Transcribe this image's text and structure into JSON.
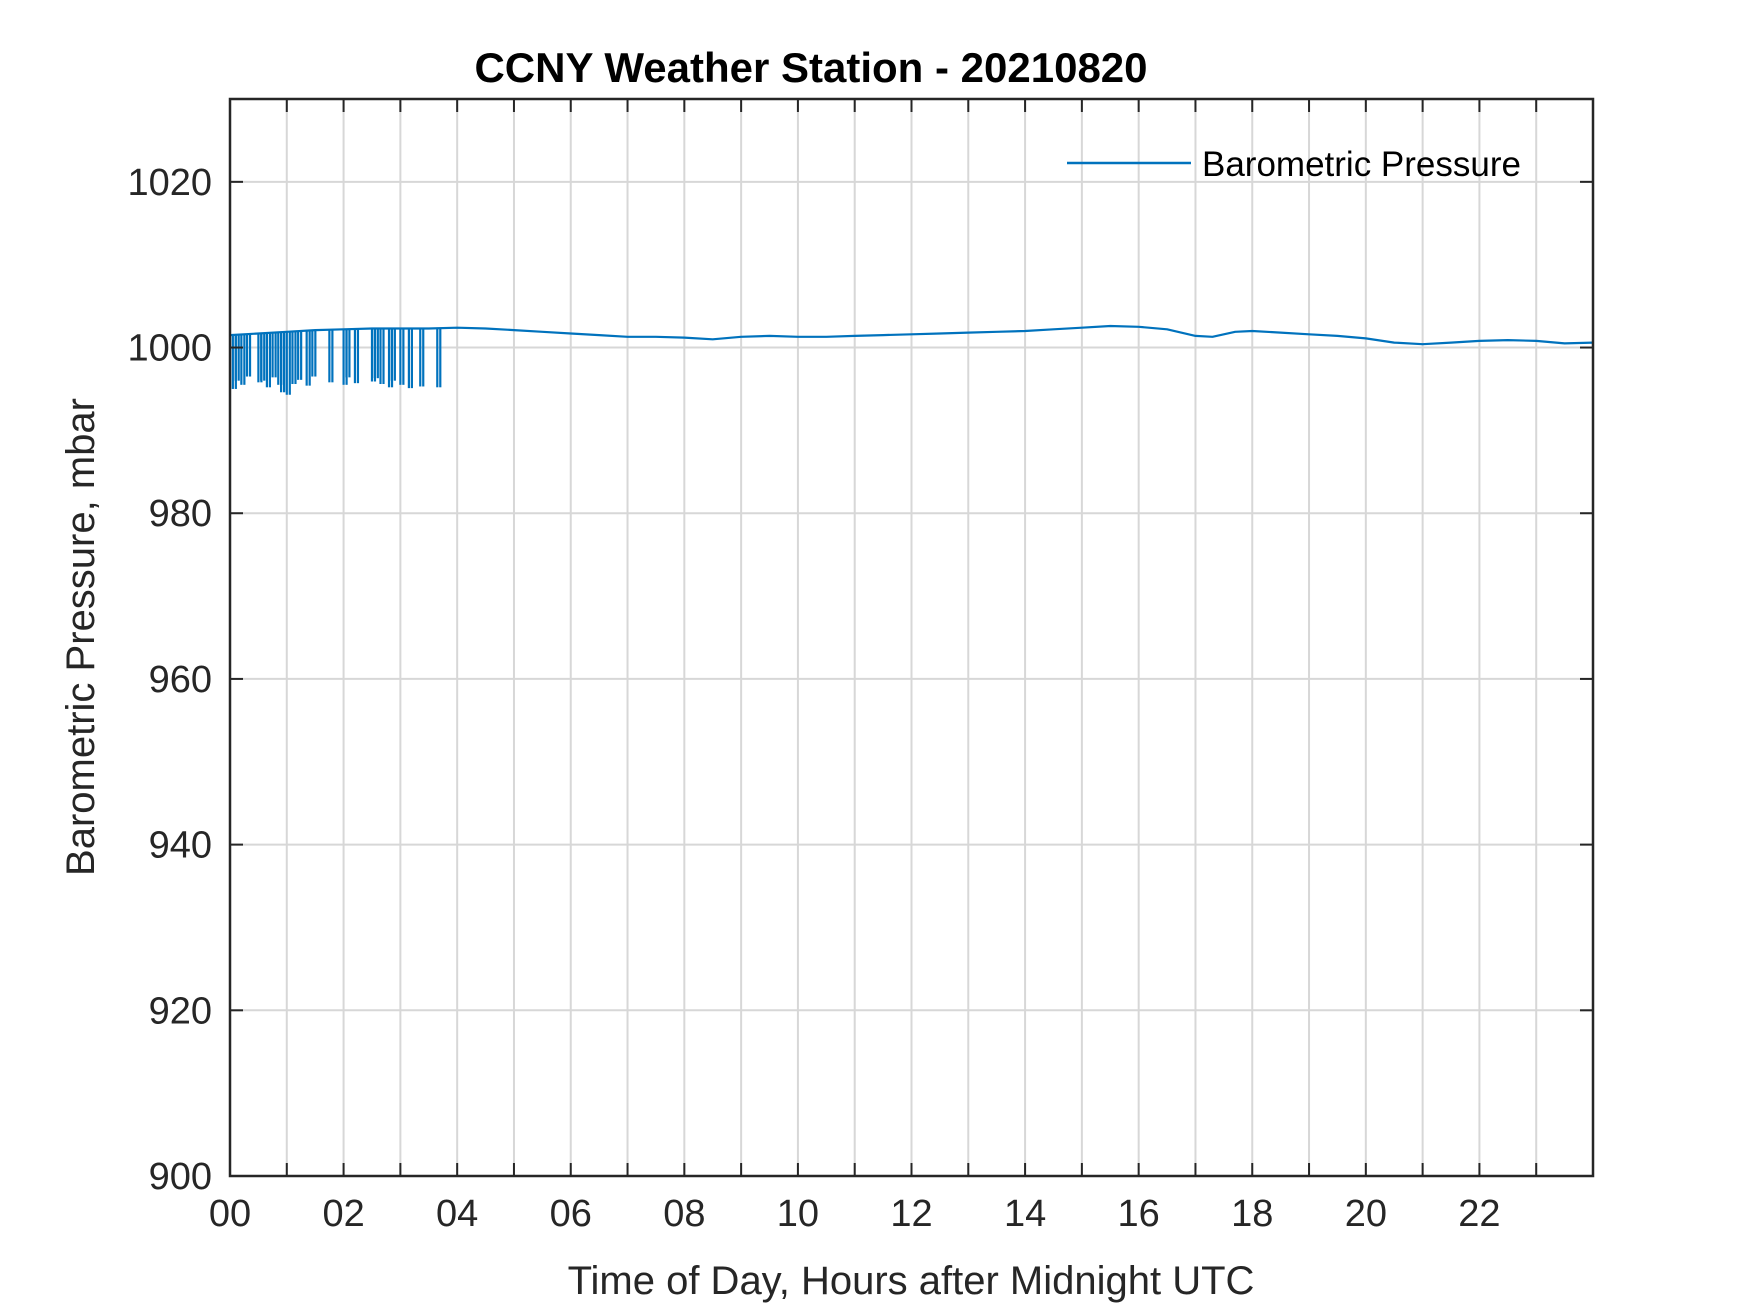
{
  "chart_data": {
    "type": "line",
    "title": "CCNY Weather Station - 20210820",
    "xlabel": "Time of Day, Hours after Midnight UTC",
    "ylabel": "Barometric Pressure, mbar",
    "xlim": [
      0,
      24
    ],
    "ylim": [
      900,
      1030
    ],
    "x_ticks": [
      0,
      2,
      4,
      6,
      8,
      10,
      12,
      14,
      16,
      18,
      20,
      22
    ],
    "x_tick_labels": [
      "00",
      "02",
      "04",
      "06",
      "08",
      "10",
      "12",
      "14",
      "16",
      "18",
      "20",
      "22"
    ],
    "x_minor_grid": [
      1,
      3,
      5,
      7,
      9,
      11,
      13,
      15,
      17,
      19,
      21,
      23
    ],
    "y_ticks": [
      900,
      920,
      940,
      960,
      980,
      1000,
      1020
    ],
    "y_tick_labels": [
      "900",
      "920",
      "940",
      "960",
      "980",
      "1000",
      "1020"
    ],
    "grid": true,
    "legend": {
      "position": "top-right",
      "entries": [
        "Barometric Pressure"
      ]
    },
    "series": [
      {
        "name": "Barometric Pressure",
        "color": "#0072BD",
        "x": [
          0.0,
          0.5,
          1.0,
          1.5,
          2.0,
          2.5,
          3.0,
          3.5,
          4.0,
          4.5,
          5.0,
          5.5,
          6.0,
          6.5,
          7.0,
          7.5,
          8.0,
          8.5,
          9.0,
          9.5,
          10.0,
          10.5,
          11.0,
          11.5,
          12.0,
          12.5,
          13.0,
          13.5,
          14.0,
          14.5,
          15.0,
          15.5,
          16.0,
          16.5,
          17.0,
          17.3,
          17.7,
          18.0,
          18.5,
          19.0,
          19.5,
          20.0,
          20.5,
          21.0,
          21.5,
          22.0,
          22.5,
          23.0,
          23.5,
          24.0
        ],
        "values": [
          1001.5,
          1001.7,
          1001.9,
          1002.1,
          1002.2,
          1002.3,
          1002.3,
          1002.3,
          1002.4,
          1002.3,
          1002.1,
          1001.9,
          1001.7,
          1001.5,
          1001.3,
          1001.3,
          1001.2,
          1001.0,
          1001.3,
          1001.4,
          1001.3,
          1001.3,
          1001.4,
          1001.5,
          1001.6,
          1001.7,
          1001.8,
          1001.9,
          1002.0,
          1002.2,
          1002.4,
          1002.6,
          1002.5,
          1002.2,
          1001.4,
          1001.3,
          1001.9,
          1002.0,
          1001.8,
          1001.6,
          1001.4,
          1001.1,
          1000.6,
          1000.4,
          1000.6,
          1000.8,
          1000.9,
          1000.8,
          1000.5,
          1000.6
        ]
      }
    ],
    "dropouts": {
      "x": [
        0.05,
        0.1,
        0.2,
        0.3,
        0.5,
        0.55,
        0.65,
        0.75,
        0.85,
        0.9,
        1.0,
        1.1,
        1.2,
        1.35,
        1.45,
        1.75,
        2.0,
        2.05,
        2.2,
        2.5,
        2.55,
        2.65,
        2.8,
        2.85,
        3.0,
        3.15,
        3.35,
        3.65
      ],
      "values": [
        995.0,
        996.0,
        995.5,
        996.5,
        995.8,
        996.0,
        995.2,
        996.4,
        995.5,
        994.6,
        994.3,
        995.6,
        996.1,
        995.4,
        996.5,
        995.8,
        995.5,
        996.4,
        995.7,
        995.9,
        996.3,
        995.6,
        995.2,
        996.0,
        995.5,
        995.1,
        995.3,
        995.2
      ]
    }
  }
}
